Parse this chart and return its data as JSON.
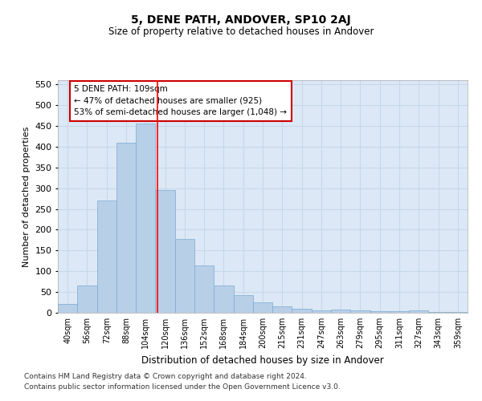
{
  "title": "5, DENE PATH, ANDOVER, SP10 2AJ",
  "subtitle": "Size of property relative to detached houses in Andover",
  "xlabel": "Distribution of detached houses by size in Andover",
  "ylabel": "Number of detached properties",
  "categories": [
    "40sqm",
    "56sqm",
    "72sqm",
    "88sqm",
    "104sqm",
    "120sqm",
    "136sqm",
    "152sqm",
    "168sqm",
    "184sqm",
    "200sqm",
    "215sqm",
    "231sqm",
    "247sqm",
    "263sqm",
    "279sqm",
    "295sqm",
    "311sqm",
    "327sqm",
    "343sqm",
    "359sqm"
  ],
  "values": [
    22,
    65,
    270,
    410,
    455,
    295,
    178,
    113,
    65,
    43,
    25,
    15,
    10,
    6,
    7,
    5,
    3,
    3,
    5,
    2,
    2
  ],
  "bar_color": "#b8cfe8",
  "bar_edge_color": "#7aaad0",
  "grid_color": "#c8d8ea",
  "background_color": "#dce8f5",
  "ylim": [
    0,
    560
  ],
  "yticks": [
    0,
    50,
    100,
    150,
    200,
    250,
    300,
    350,
    400,
    450,
    500,
    550
  ],
  "red_line_x": 4.62,
  "annotation_text": "5 DENE PATH: 109sqm\n← 47% of detached houses are smaller (925)\n53% of semi-detached houses are larger (1,048) →",
  "annotation_box_color": "#ffffff",
  "annotation_box_edge": "#cc0000",
  "footnote1": "Contains HM Land Registry data © Crown copyright and database right 2024.",
  "footnote2": "Contains public sector information licensed under the Open Government Licence v3.0."
}
